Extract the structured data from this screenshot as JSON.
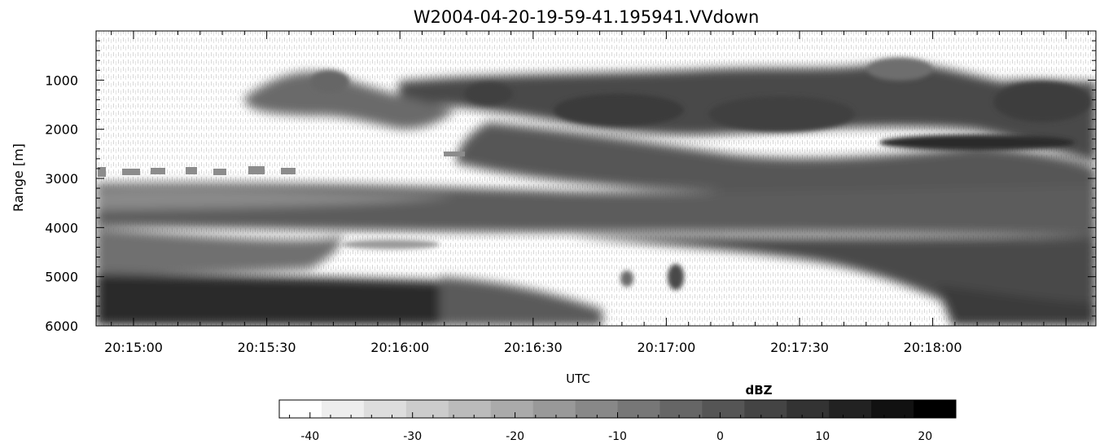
{
  "chart_data": {
    "type": "heatmap",
    "title": "W2004-04-20-19-59-41.195941.VVdown",
    "xlabel": "UTC",
    "ylabel": "Range [m]",
    "x_tick_labels": [
      "20:15:00",
      "20:15:30",
      "20:16:00",
      "20:16:30",
      "20:17:00",
      "20:17:30",
      "20:18:00"
    ],
    "y_tick_labels": [
      "1000",
      "2000",
      "3000",
      "4000",
      "5000",
      "6000"
    ],
    "y_ticks": [
      1000,
      2000,
      3000,
      4000,
      5000,
      6000
    ],
    "ylim": [
      6000,
      0
    ],
    "y_inverted": true,
    "colorbar": {
      "label": "dBZ",
      "ticks": [
        -40,
        -30,
        -20,
        -10,
        0,
        10,
        20
      ],
      "tick_labels": [
        "-40",
        "-30",
        "-20",
        "-10",
        "0",
        "10",
        "20"
      ],
      "range": [
        -43,
        23
      ],
      "colormap": "grayscale (white = low reflectivity, black = high reflectivity)"
    },
    "features": [
      {
        "name": "cloud-top",
        "approx_range_m": [
          700,
          1500
        ]
      },
      {
        "name": "upper-cloud-layer",
        "approx_range_m": [
          1000,
          3000
        ]
      },
      {
        "name": "mid-layer",
        "approx_range_m": [
          3000,
          4200
        ]
      },
      {
        "name": "lower-strong-echo",
        "approx_range_m": [
          4800,
          6000
        ]
      }
    ]
  },
  "colors": {
    "background": "#ffffff",
    "axes": "#000000"
  }
}
